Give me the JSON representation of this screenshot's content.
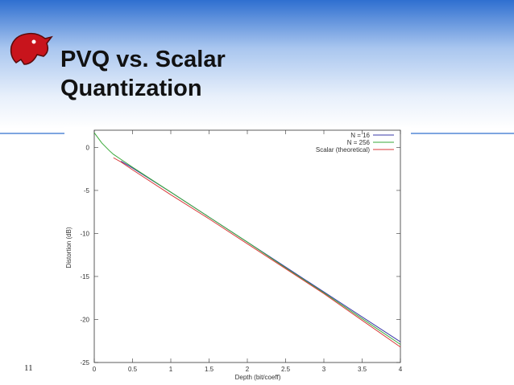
{
  "slide": {
    "title": "PVQ vs. Scalar Quantization",
    "page_number": "11"
  },
  "chart_data": {
    "type": "line",
    "xlabel": "Depth (bit/coeff)",
    "ylabel": "Distortion (dB)",
    "x": [
      0,
      0.1,
      0.2,
      0.25,
      0.35,
      0.5,
      1,
      1.5,
      2,
      2.5,
      3,
      3.5,
      4
    ],
    "series": [
      {
        "name": "N =  16",
        "color": "#3a3aa8",
        "values": [
          null,
          null,
          null,
          null,
          -1.6,
          -2.4,
          -5.2,
          -8.1,
          -11.0,
          -13.9,
          -16.8,
          -19.7,
          -22.6
        ]
      },
      {
        "name": "N = 256",
        "color": "#3aa83a",
        "values": [
          1.7,
          0.5,
          -0.4,
          -0.8,
          -1.4,
          -2.3,
          -5.2,
          -8.1,
          -11.0,
          -14.0,
          -16.9,
          -19.9,
          -22.9
        ]
      },
      {
        "name": "Scalar (theoretical)",
        "color": "#d83a3a",
        "values": [
          null,
          null,
          null,
          -1.2,
          -1.7,
          -2.6,
          -5.5,
          -8.3,
          -11.2,
          -14.1,
          -17.0,
          -20.1,
          -23.2
        ]
      }
    ],
    "xlim": [
      0,
      4
    ],
    "xticks": [
      0,
      0.5,
      1,
      1.5,
      2,
      2.5,
      3,
      3.5,
      4
    ],
    "ylim": [
      -25,
      2
    ],
    "yticks": [
      -25,
      -20,
      -15,
      -10,
      -5,
      0
    ],
    "grid": false,
    "legend": "upper right"
  }
}
